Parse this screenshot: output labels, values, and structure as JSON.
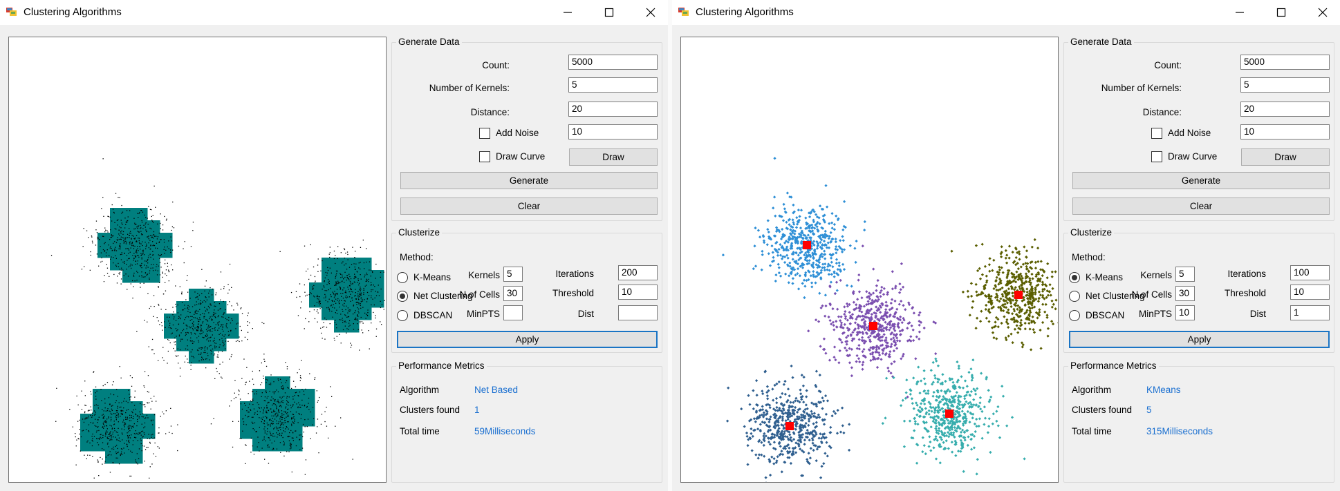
{
  "colors": {
    "accent": "#1a74c4",
    "value_text": "#1a6fd0",
    "centroid": "#ff0000"
  },
  "windows": [
    {
      "title": "Clustering Algorithms",
      "generate": {
        "group_title": "Generate Data",
        "count_label": "Count:",
        "count_value": "5000",
        "kernels_label": "Number of Kernels:",
        "kernels_value": "5",
        "distance_label": "Distance:",
        "distance_value": "20",
        "add_noise_label": "Add Noise",
        "add_noise_checked": false,
        "noise_value": "10",
        "draw_curve_label": "Draw Curve",
        "draw_curve_checked": false,
        "draw_button": "Draw",
        "generate_button": "Generate",
        "clear_button": "Clear"
      },
      "clusterize": {
        "group_title": "Clusterize",
        "method_label": "Method:",
        "methods": [
          "K-Means",
          "Net Clustering",
          "DBSCAN"
        ],
        "selected_method": 1,
        "kernels_label": "Kernels",
        "kernels_value": "5",
        "iterations_label": "Iterations",
        "iterations_value": "200",
        "ncells_label": "N of Cells",
        "ncells_value": "30",
        "threshold_label": "Threshold",
        "threshold_value": "10",
        "minpts_label": "MinPTS",
        "minpts_value": "",
        "dist_label": "Dist",
        "dist_value": "",
        "apply_button": "Apply"
      },
      "performance": {
        "group_title": "Performance Metrics",
        "algorithm_label": "Algorithm",
        "algorithm_value": "Net Based",
        "clusters_label": "Clusters found",
        "clusters_value": "1",
        "time_label": "Total time",
        "time_value": "59Milliseconds"
      },
      "plot": {
        "style": "grid",
        "cell_color": "#007f7f",
        "point_color": "#000000",
        "point_count": 5000
      }
    },
    {
      "title": "Clustering Algorithms",
      "generate": {
        "group_title": "Generate Data",
        "count_label": "Count:",
        "count_value": "5000",
        "kernels_label": "Number of Kernels:",
        "kernels_value": "5",
        "distance_label": "Distance:",
        "distance_value": "20",
        "add_noise_label": "Add Noise",
        "add_noise_checked": false,
        "noise_value": "10",
        "draw_curve_label": "Draw Curve",
        "draw_curve_checked": false,
        "draw_button": "Draw",
        "generate_button": "Generate",
        "clear_button": "Clear"
      },
      "clusterize": {
        "group_title": "Clusterize",
        "method_label": "Method:",
        "methods": [
          "K-Means",
          "Net Clustering",
          "DBSCAN"
        ],
        "selected_method": 0,
        "kernels_label": "Kernels",
        "kernels_value": "5",
        "iterations_label": "Iterations",
        "iterations_value": "100",
        "ncells_label": "N of Cells",
        "ncells_value": "30",
        "threshold_label": "Threshold",
        "threshold_value": "10",
        "minpts_label": "MinPTS",
        "minpts_value": "10",
        "dist_label": "Dist",
        "dist_value": "1",
        "apply_button": "Apply"
      },
      "performance": {
        "group_title": "Performance Metrics",
        "algorithm_label": "Algorithm",
        "algorithm_value": "KMeans",
        "clusters_label": "Clusters found",
        "clusters_value": "5",
        "time_label": "Total time",
        "time_value": "315Milliseconds"
      },
      "plot": {
        "style": "kmeans",
        "point_count": 5000,
        "cluster_colors": [
          "#2e8fd6",
          "#7b4fb0",
          "#5a5e00",
          "#2f5f8f",
          "#36adad"
        ]
      }
    }
  ]
}
